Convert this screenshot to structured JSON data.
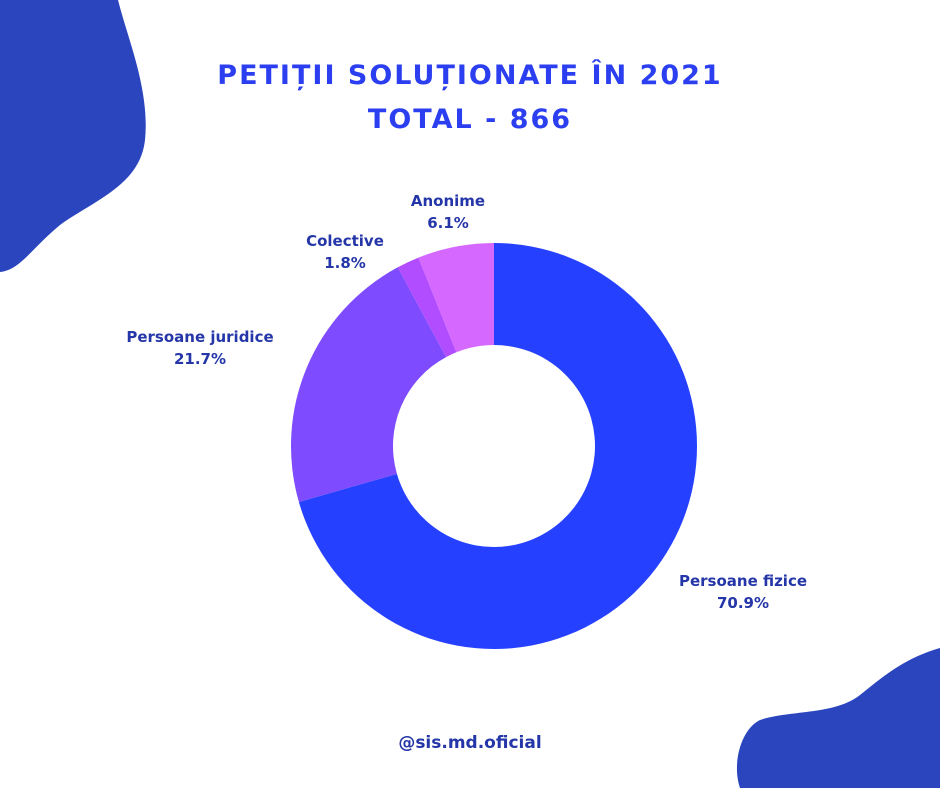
{
  "title_line1": "PETIȚII SOLUȚIONATE ÎN 2021",
  "title_line2": "TOTAL - 866",
  "footer": "@sis.md.oficial",
  "colors": {
    "title": "#2b3ff0",
    "label": "#2436a8",
    "blob": "#2b45bf"
  },
  "chart_data": {
    "type": "pie",
    "donut": true,
    "slices": [
      {
        "label": "Persoane fizice",
        "pct_text": "70.9%",
        "value": 70.9,
        "color": "#2541ff"
      },
      {
        "label": "Persoane juridice",
        "pct_text": "21.7%",
        "value": 21.7,
        "color": "#7e4bff"
      },
      {
        "label": "Colective",
        "pct_text": "1.8%",
        "value": 1.8,
        "color": "#b24dff"
      },
      {
        "label": "Anonime",
        "pct_text": "6.1%",
        "value": 6.1,
        "color": "#d569ff"
      }
    ]
  }
}
